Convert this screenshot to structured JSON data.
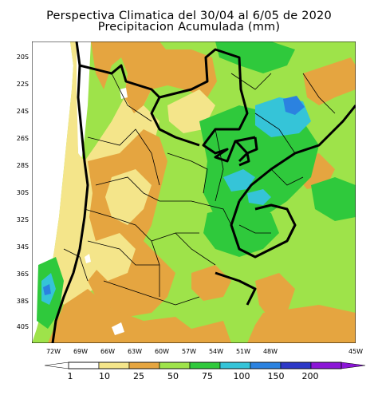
{
  "title": {
    "line1": "Perspectiva Climatica del 30/04 al 6/05 de 2020",
    "line2": "Precipitacion Acumulada (mm)"
  },
  "axes": {
    "lat_labels": [
      "20S",
      "22S",
      "24S",
      "26S",
      "28S",
      "30S",
      "32S",
      "34S",
      "36S",
      "38S",
      "40S"
    ],
    "lon_labels": [
      "72W",
      "69W",
      "66W",
      "63W",
      "60W",
      "57W",
      "54W",
      "51W",
      "48W",
      "45W"
    ]
  },
  "legend": {
    "labels": [
      "1",
      "10",
      "25",
      "50",
      "75",
      "100",
      "150",
      "200"
    ],
    "colors": [
      "#ffffff",
      "#f4e58a",
      "#e5a540",
      "#9ee34a",
      "#2fc93c",
      "#35c4d8",
      "#2b82e0",
      "#2d39c7",
      "#8b16d6"
    ]
  },
  "map_colors": {
    "ocean": "#ffffff",
    "yellow": "#f4e58a",
    "orange": "#e5a540",
    "lightgreen": "#9ee34a",
    "green": "#2fc93c",
    "cyan": "#35c4d8",
    "blue": "#2b82e0"
  }
}
